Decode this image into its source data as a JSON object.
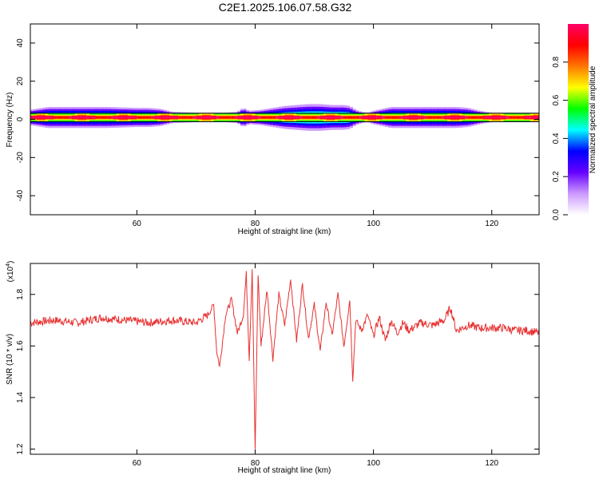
{
  "title": "C2E1.2025.106.07.58.G32",
  "chart_data": [
    {
      "type": "heatmap",
      "xlabel": "Height of straight line (km)",
      "ylabel": "Frequency (Hz)",
      "xlim": [
        42,
        128
      ],
      "ylim": [
        -50,
        50
      ],
      "xticks": [
        "60",
        "80",
        "100",
        "120"
      ],
      "xtick_values": [
        60,
        80,
        100,
        120
      ],
      "yticks": [
        "40",
        "20",
        "0",
        "-20",
        "-40"
      ],
      "ytick_values": [
        40,
        20,
        0,
        -20,
        -40
      ],
      "band_center_hz": 1,
      "base_halfwidth_hz": 1,
      "envelope": {
        "x_km": [
          42,
          45,
          50,
          55,
          60,
          62,
          64,
          66,
          70,
          75,
          77,
          78,
          79,
          81,
          83,
          85,
          87,
          89,
          91,
          93,
          95,
          96,
          97,
          98,
          99,
          100,
          103,
          106,
          110,
          114,
          116,
          118,
          120,
          125,
          128
        ],
        "halfwidth_hz": [
          4,
          5.5,
          5.5,
          5.5,
          5,
          5,
          4.5,
          3,
          2.5,
          2.5,
          3,
          5,
          3.5,
          4,
          5,
          6,
          6.5,
          7,
          7,
          6.5,
          6.5,
          6,
          4,
          3,
          2.5,
          3.5,
          5.5,
          5.5,
          5.5,
          5.5,
          5,
          3.5,
          2.5,
          2.5,
          2.5
        ]
      },
      "colorbar": {
        "label": "Normalized spectral amplitude",
        "range": [
          0,
          1
        ],
        "ticks": [
          "0.0",
          "0.2",
          "0.4",
          "0.6",
          "0.8"
        ],
        "tick_values": [
          0,
          0.2,
          0.4,
          0.6,
          0.8
        ],
        "colors": [
          "#ffffff",
          "#cc99ff",
          "#6600ff",
          "#0000ff",
          "#00ffff",
          "#00ff00",
          "#ffff00",
          "#ff7700",
          "#ff0000",
          "#ff0066"
        ]
      }
    },
    {
      "type": "line",
      "xlabel": "Height of straight line (km)",
      "ylabel": "SNR (10 * v/v)",
      "yscale_label": "(x10",
      "yscale_exponent": "4",
      "yscale_close": ")",
      "xlim": [
        42,
        128
      ],
      "ylim": [
        1.18,
        1.92
      ],
      "xticks": [
        "60",
        "80",
        "100",
        "120"
      ],
      "xtick_values": [
        60,
        80,
        100,
        120
      ],
      "yticks": [
        "1.2",
        "1.4",
        "1.6",
        "1.8"
      ],
      "ytick_values": [
        1.2,
        1.4,
        1.6,
        1.8
      ],
      "color": "#e83030",
      "series": [
        {
          "x": [
            42,
            46,
            50,
            54,
            58,
            62,
            66,
            70,
            72,
            73,
            73.5,
            74,
            75,
            76,
            77,
            78,
            78.5,
            79,
            79.5,
            80,
            80.5,
            81,
            82,
            83,
            84,
            85,
            86,
            87,
            88,
            89,
            90,
            91,
            92,
            93,
            94,
            95,
            96,
            96.5,
            97,
            98,
            99,
            100,
            101,
            102,
            103,
            104,
            105,
            106,
            108,
            110,
            112,
            113,
            114,
            116,
            118,
            120,
            122,
            124,
            126,
            128
          ],
          "y": [
            1.69,
            1.7,
            1.69,
            1.71,
            1.7,
            1.69,
            1.7,
            1.69,
            1.72,
            1.76,
            1.58,
            1.52,
            1.72,
            1.78,
            1.65,
            1.72,
            1.88,
            1.55,
            1.9,
            1.19,
            1.88,
            1.6,
            1.82,
            1.55,
            1.8,
            1.68,
            1.86,
            1.62,
            1.84,
            1.63,
            1.76,
            1.58,
            1.77,
            1.64,
            1.8,
            1.6,
            1.78,
            1.47,
            1.7,
            1.66,
            1.72,
            1.64,
            1.71,
            1.62,
            1.7,
            1.65,
            1.69,
            1.66,
            1.69,
            1.68,
            1.7,
            1.75,
            1.66,
            1.68,
            1.67,
            1.67,
            1.67,
            1.66,
            1.66,
            1.65
          ]
        }
      ]
    }
  ]
}
